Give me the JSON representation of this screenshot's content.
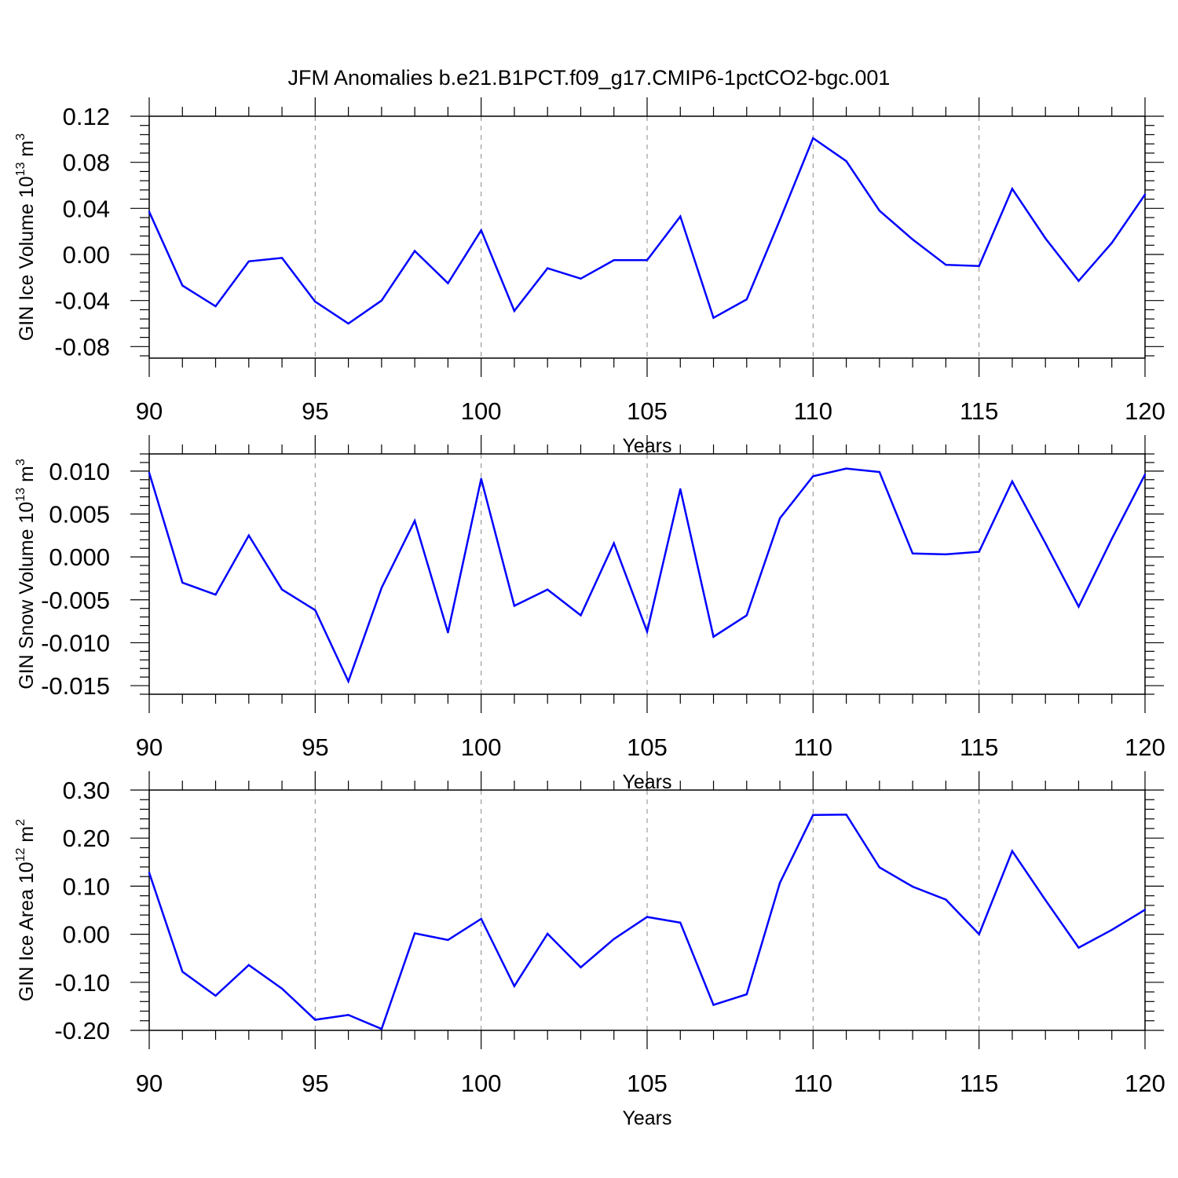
{
  "figure_title": "JFM Anomalies b.e21.B1PCT.f09_g17.CMIP6-1pctCO2-bgc.001",
  "colors": {
    "line": "#0000ff",
    "axis": "#000000",
    "grid": "#888888"
  },
  "chart_data": [
    {
      "type": "line",
      "xlabel": "Years",
      "ylabel": {
        "text": "GIN Ice Volume 10",
        "exp": "13",
        "unit": " m",
        "unit_exp": "3"
      },
      "xlim": [
        90,
        120
      ],
      "ylim": [
        -0.09,
        0.12
      ],
      "xticks": [
        "90",
        "95",
        "100",
        "105",
        "110",
        "115",
        "120"
      ],
      "yticks": [
        "0.12",
        "0.08",
        "0.04",
        "0.00",
        "-0.04",
        "-0.08"
      ],
      "grid": "vertical-dashed",
      "x": [
        90,
        91,
        92,
        93,
        94,
        95,
        96,
        97,
        98,
        99,
        100,
        101,
        102,
        103,
        104,
        105,
        106,
        107,
        108,
        109,
        110,
        111,
        112,
        113,
        114,
        115,
        116,
        117,
        118,
        119,
        120
      ],
      "values": [
        0.037,
        -0.027,
        -0.045,
        -0.006,
        -0.003,
        -0.041,
        -0.06,
        -0.04,
        0.003,
        -0.025,
        0.021,
        -0.049,
        -0.012,
        -0.021,
        -0.005,
        -0.005,
        0.033,
        -0.055,
        -0.039,
        0.03,
        0.101,
        0.081,
        0.038,
        0.013,
        -0.009,
        -0.01,
        0.057,
        0.014,
        -0.023,
        0.01,
        0.052
      ]
    },
    {
      "type": "line",
      "xlabel": "Years",
      "ylabel": {
        "text": "GIN Snow Volume 10",
        "exp": "13",
        "unit": " m",
        "unit_exp": "3"
      },
      "xlim": [
        90,
        120
      ],
      "ylim": [
        -0.016,
        0.012
      ],
      "xticks": [
        "90",
        "95",
        "100",
        "105",
        "110",
        "115",
        "120"
      ],
      "yticks": [
        "0.010",
        "0.005",
        "0.000",
        "-0.005",
        "-0.010",
        "-0.015"
      ],
      "grid": "vertical-dashed",
      "x": [
        90,
        91,
        92,
        93,
        94,
        95,
        96,
        97,
        98,
        99,
        100,
        101,
        102,
        103,
        104,
        105,
        106,
        107,
        108,
        109,
        110,
        111,
        112,
        113,
        114,
        115,
        116,
        117,
        118,
        119,
        120
      ],
      "values": [
        0.0098,
        -0.003,
        -0.0044,
        0.0025,
        -0.0038,
        -0.0062,
        -0.0145,
        -0.0036,
        0.0042,
        -0.0088,
        0.0091,
        -0.0057,
        -0.0038,
        -0.0068,
        0.0016,
        -0.0087,
        0.0079,
        -0.0093,
        -0.0068,
        0.0045,
        0.0094,
        0.0103,
        0.0099,
        0.0004,
        0.0003,
        0.0006,
        0.0088,
        0.0016,
        -0.0058,
        0.0021,
        0.0096
      ]
    },
    {
      "type": "line",
      "xlabel": "Years",
      "ylabel": {
        "text": "GIN Ice Area 10",
        "exp": "12",
        "unit": " m",
        "unit_exp": "2"
      },
      "xlim": [
        90,
        120
      ],
      "ylim": [
        -0.2,
        0.3
      ],
      "xticks": [
        "90",
        "95",
        "100",
        "105",
        "110",
        "115",
        "120"
      ],
      "yticks": [
        "0.30",
        "0.20",
        "0.10",
        "0.00",
        "-0.10",
        "-0.20"
      ],
      "grid": "vertical-dashed",
      "x": [
        90,
        91,
        92,
        93,
        94,
        95,
        96,
        97,
        98,
        99,
        100,
        101,
        102,
        103,
        104,
        105,
        106,
        107,
        108,
        109,
        110,
        111,
        112,
        113,
        114,
        115,
        116,
        117,
        118,
        119,
        120
      ],
      "values": [
        0.128,
        -0.078,
        -0.128,
        -0.064,
        -0.113,
        -0.178,
        -0.168,
        -0.197,
        0.002,
        -0.012,
        0.032,
        -0.108,
        0.001,
        -0.069,
        -0.01,
        0.036,
        0.024,
        -0.147,
        -0.125,
        0.107,
        0.248,
        0.249,
        0.139,
        0.099,
        0.072,
        0.0,
        0.173,
        0.071,
        -0.028,
        0.009,
        0.051
      ]
    }
  ]
}
